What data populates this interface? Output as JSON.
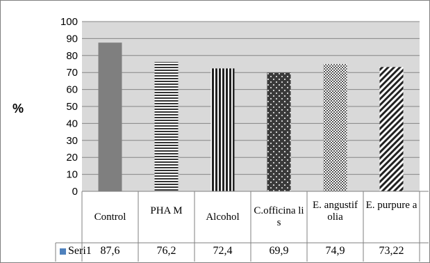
{
  "chart_data": {
    "type": "bar",
    "title": "",
    "xlabel": "",
    "ylabel": "%",
    "ylim": [
      0,
      100
    ],
    "yticks": [
      0,
      10,
      20,
      30,
      40,
      50,
      60,
      70,
      80,
      90,
      100
    ],
    "grid": true,
    "categories": [
      "Control",
      "PHA M",
      "Alcohol",
      "C.officinalis",
      "E. angustifolia",
      "E. purpurea"
    ],
    "category_labels": [
      "Control",
      "PHA M",
      "Alcohol",
      "C.officina lis",
      "E. angustif olia",
      "E. purpure a"
    ],
    "series": [
      {
        "name": "Seri1",
        "values": [
          87.6,
          76.2,
          72.4,
          69.9,
          74.9,
          73.22
        ]
      }
    ],
    "value_labels": [
      "87,6",
      "76,2",
      "72,4",
      "69,9",
      "74,9",
      "73,22"
    ],
    "legend": {
      "name": "Seri1",
      "color": "#4f81bd",
      "placement": "data-table"
    },
    "bar_fills": [
      "solid-gray",
      "horizontal-stripes",
      "vertical-stripes",
      "dots",
      "checker",
      "diagonal-stripes"
    ],
    "colors": {
      "plot_bg": "#d9d9d9",
      "bar_dark": "#7f7f7f",
      "grid": "#858585"
    }
  }
}
